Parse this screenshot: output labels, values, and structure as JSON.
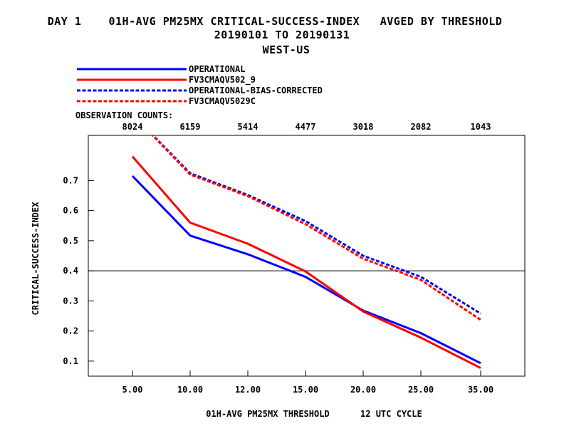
{
  "titles": {
    "line1": "DAY 1    01H-AVG PM25MX CRITICAL-SUCCESS-INDEX   AVGED BY THRESHOLD",
    "line2": "20190101 TO 20190131",
    "line3": "WEST-US"
  },
  "obs_label": "OBSERVATION COUNTS:",
  "obs_counts": [
    "8024",
    "6159",
    "5414",
    "4477",
    "3018",
    "2082",
    "1043"
  ],
  "chart_data": {
    "type": "line",
    "categories": [
      "5.00",
      "10.00",
      "12.00",
      "15.00",
      "20.00",
      "25.00",
      "35.00"
    ],
    "xlabel": "01H-AVG PM25MX THRESHOLD      12 UTC CYCLE",
    "ylabel": "CRITICAL-SUCCESS-INDEX",
    "ylim": [
      0.05,
      0.85
    ],
    "yticks": [
      "0.1",
      "0.2",
      "0.3",
      "0.4",
      "0.5",
      "0.6",
      "0.7"
    ],
    "reference_line": 0.4,
    "legend_position": "top-left",
    "series": [
      {
        "name": "OPERATIONAL",
        "color": "#0000ff",
        "dashed": false,
        "values": [
          0.715,
          0.517,
          0.455,
          0.38,
          0.268,
          0.193,
          0.093
        ]
      },
      {
        "name": "FV3CMAQV502_9",
        "color": "#ff0000",
        "dashed": false,
        "values": [
          0.78,
          0.56,
          0.49,
          0.398,
          0.265,
          0.178,
          0.077
        ]
      },
      {
        "name": "OPERATIONAL-BIAS-CORRECTED",
        "color": "#0000ff",
        "dashed": true,
        "values": [
          0.92,
          0.724,
          0.652,
          0.565,
          0.45,
          0.38,
          0.258
        ]
      },
      {
        "name": "FV3CMAQV5029C",
        "color": "#ff0000",
        "dashed": true,
        "values": [
          0.92,
          0.72,
          0.648,
          0.555,
          0.44,
          0.37,
          0.237
        ]
      }
    ]
  }
}
